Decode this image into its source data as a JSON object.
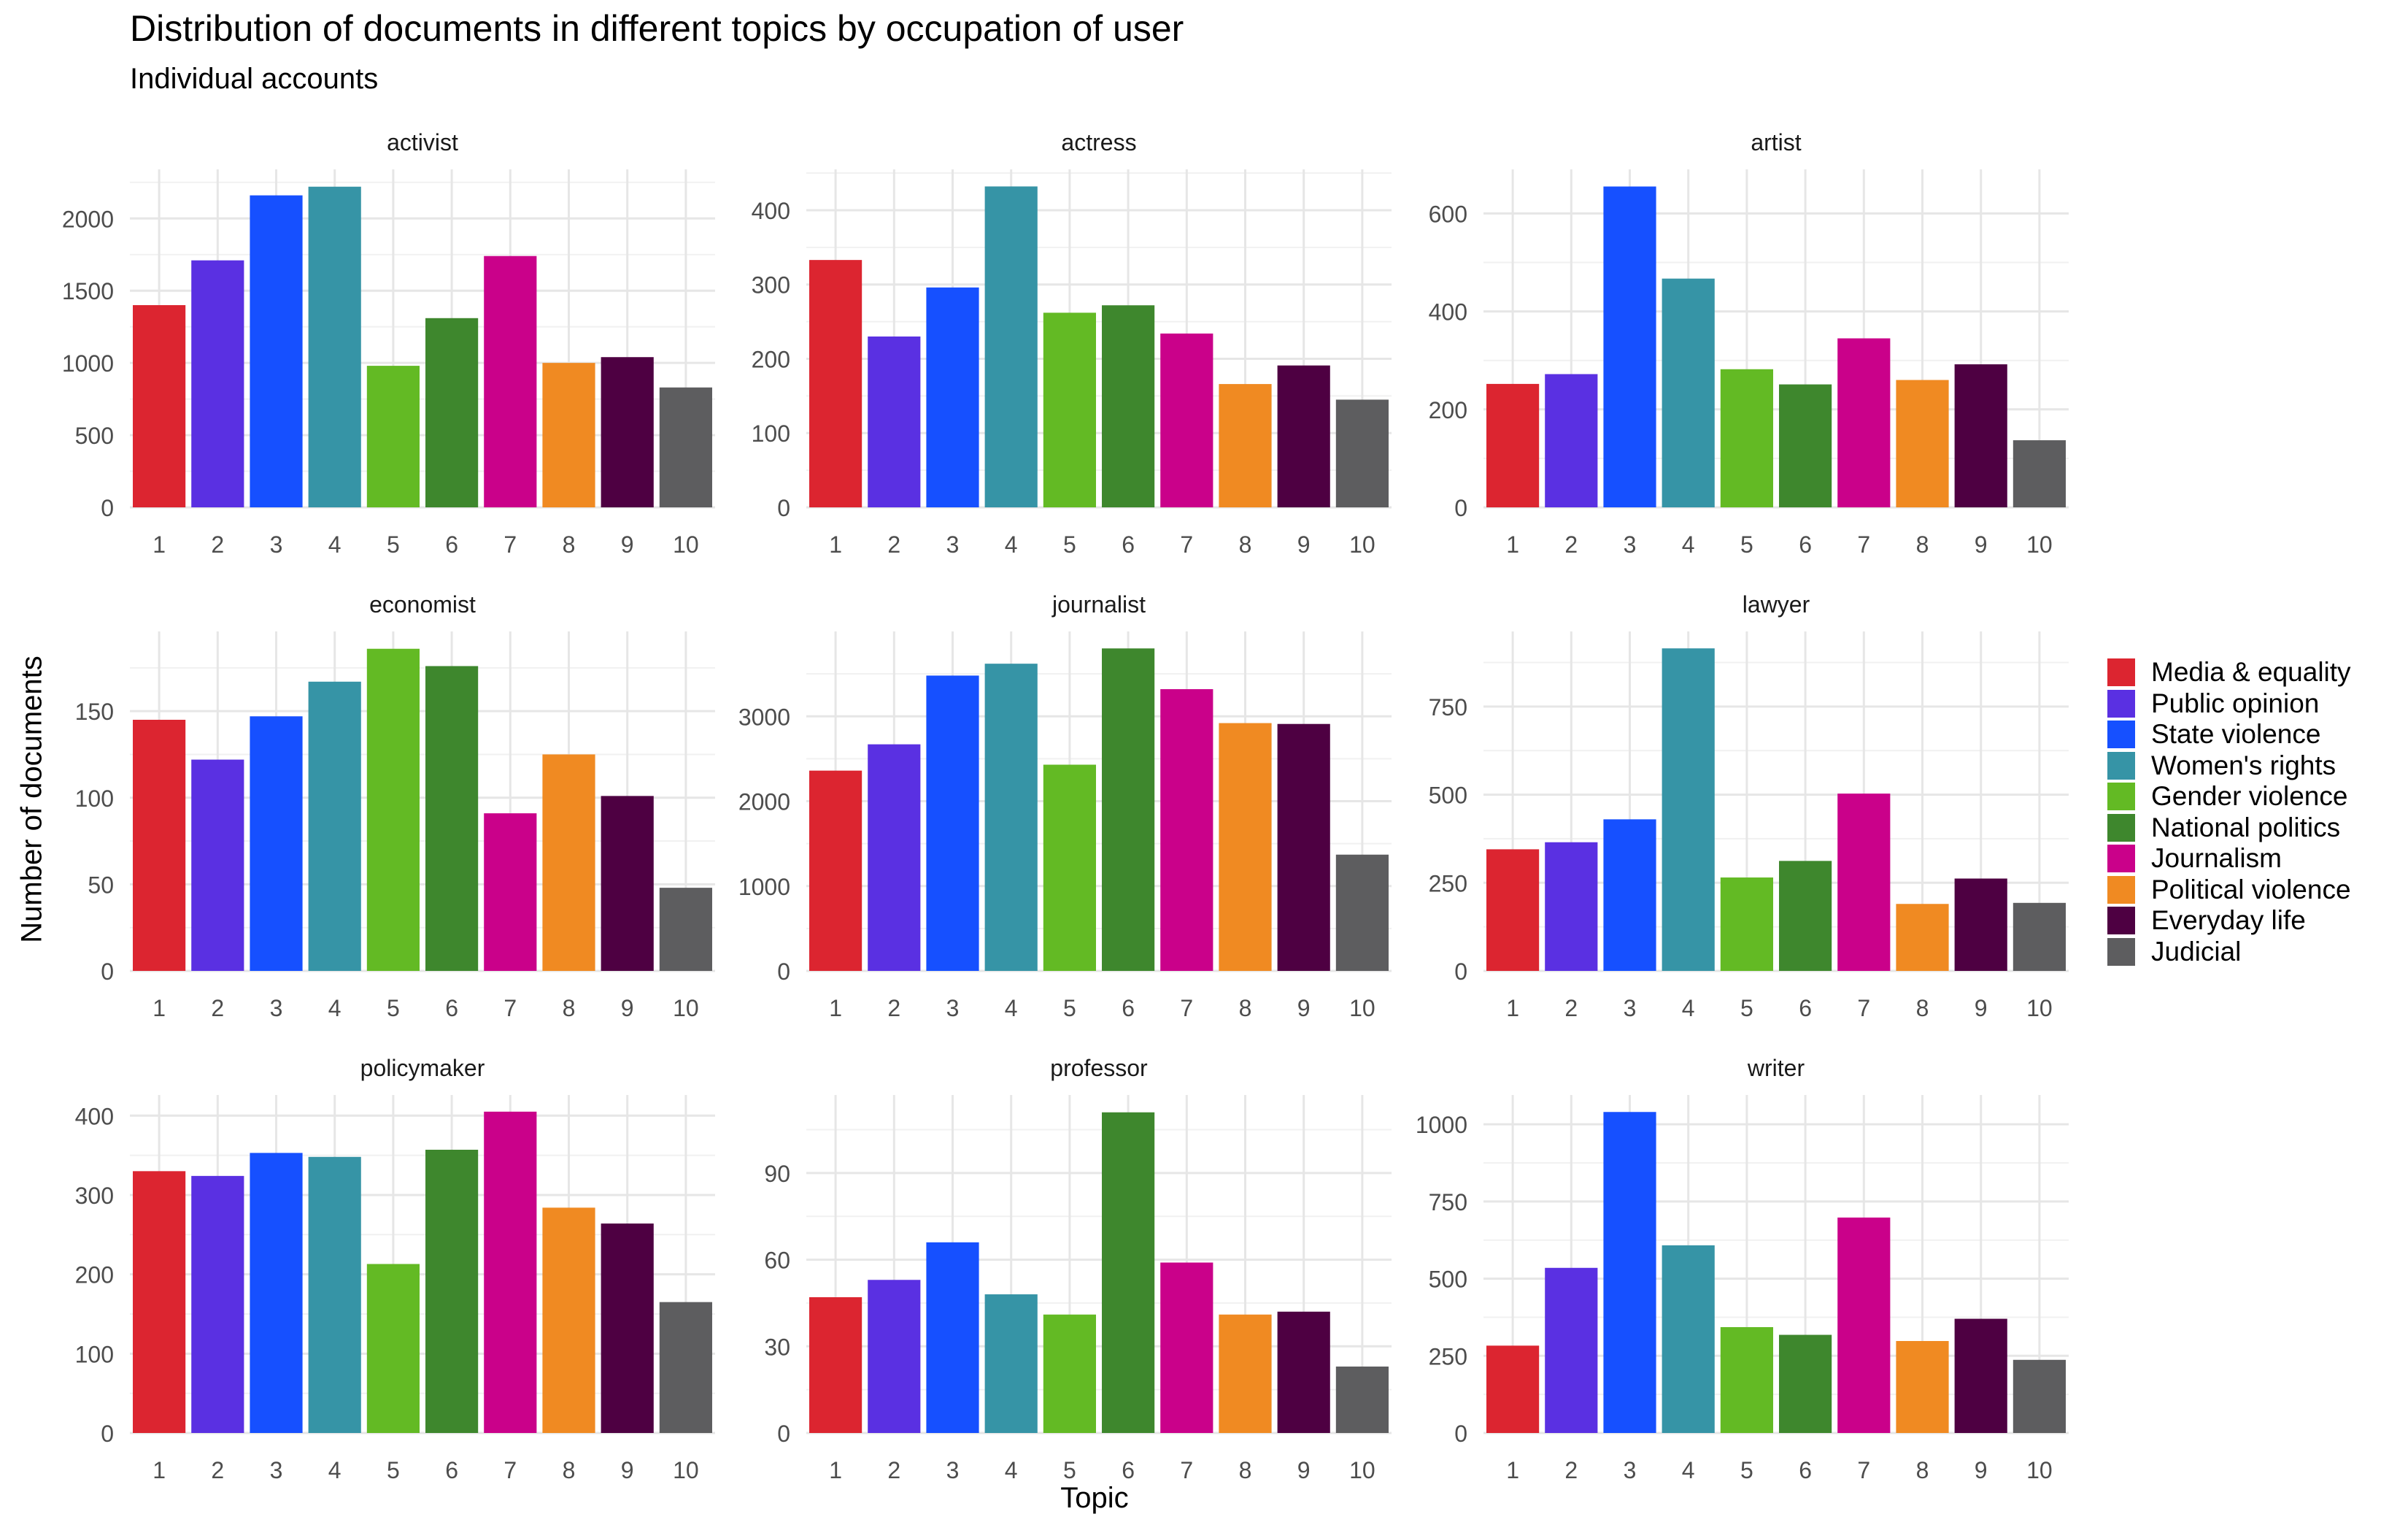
{
  "chart_data": {
    "type": "bar",
    "title": "Distribution of documents in different topics by occupation of user",
    "subtitle": "Individual accounts",
    "xlabel": "Topic",
    "ylabel": "Number of documents",
    "categories": [
      "1",
      "2",
      "3",
      "4",
      "5",
      "6",
      "7",
      "8",
      "9",
      "10"
    ],
    "legend": {
      "placement": "right",
      "entries": [
        {
          "label": "Media & equality",
          "color": "#DC2530"
        },
        {
          "label": "Public opinion",
          "color": "#5A30E2"
        },
        {
          "label": "State violence",
          "color": "#1650FF"
        },
        {
          "label": "Women's rights",
          "color": "#3694A6"
        },
        {
          "label": "Gender violence",
          "color": "#63BA24"
        },
        {
          "label": "National politics",
          "color": "#3E872D"
        },
        {
          "label": "Journalism",
          "color": "#CA018A"
        },
        {
          "label": "Political violence",
          "color": "#F08A22"
        },
        {
          "label": "Everyday life",
          "color": "#4E0042"
        },
        {
          "label": "Judicial",
          "color": "#5D5D5F"
        }
      ]
    },
    "grid": true,
    "panels": [
      {
        "name": "activist",
        "values": [
          1400,
          1710,
          2160,
          2220,
          980,
          1310,
          1740,
          1000,
          1040,
          830
        ],
        "ylim": [
          0,
          2340
        ],
        "yticks": [
          0,
          500,
          1000,
          1500,
          2000
        ]
      },
      {
        "name": "actress",
        "values": [
          333,
          230,
          296,
          432,
          262,
          272,
          234,
          166,
          191,
          145
        ],
        "ylim": [
          0,
          455
        ],
        "yticks": [
          0,
          100,
          200,
          300,
          400
        ]
      },
      {
        "name": "artist",
        "values": [
          252,
          272,
          655,
          467,
          282,
          251,
          345,
          260,
          292,
          137
        ],
        "ylim": [
          0,
          690
        ],
        "yticks": [
          0,
          200,
          400,
          600
        ]
      },
      {
        "name": "economist",
        "values": [
          145,
          122,
          147,
          167,
          186,
          176,
          91,
          125,
          101,
          48
        ],
        "ylim": [
          0,
          196
        ],
        "yticks": [
          0,
          50,
          100,
          150
        ]
      },
      {
        "name": "journalist",
        "values": [
          2360,
          2670,
          3480,
          3620,
          2430,
          3800,
          3320,
          2920,
          2910,
          1370
        ],
        "ylim": [
          0,
          4000
        ],
        "yticks": [
          0,
          1000,
          2000,
          3000
        ]
      },
      {
        "name": "lawyer",
        "values": [
          345,
          365,
          430,
          915,
          265,
          312,
          503,
          190,
          262,
          193
        ],
        "ylim": [
          0,
          963
        ],
        "yticks": [
          0,
          250,
          500,
          750
        ]
      },
      {
        "name": "policymaker",
        "values": [
          330,
          324,
          353,
          348,
          213,
          357,
          405,
          284,
          264,
          165
        ],
        "ylim": [
          0,
          426
        ],
        "yticks": [
          0,
          100,
          200,
          300,
          400
        ]
      },
      {
        "name": "professor",
        "values": [
          47,
          53,
          66,
          48,
          41,
          111,
          59,
          41,
          42,
          23
        ],
        "ylim": [
          0,
          117
        ],
        "yticks": [
          0,
          30,
          60,
          90
        ]
      },
      {
        "name": "writer",
        "values": [
          283,
          535,
          1040,
          608,
          343,
          318,
          698,
          298,
          370,
          237
        ],
        "ylim": [
          0,
          1095
        ],
        "yticks": [
          0,
          250,
          500,
          750,
          1000
        ]
      }
    ]
  }
}
